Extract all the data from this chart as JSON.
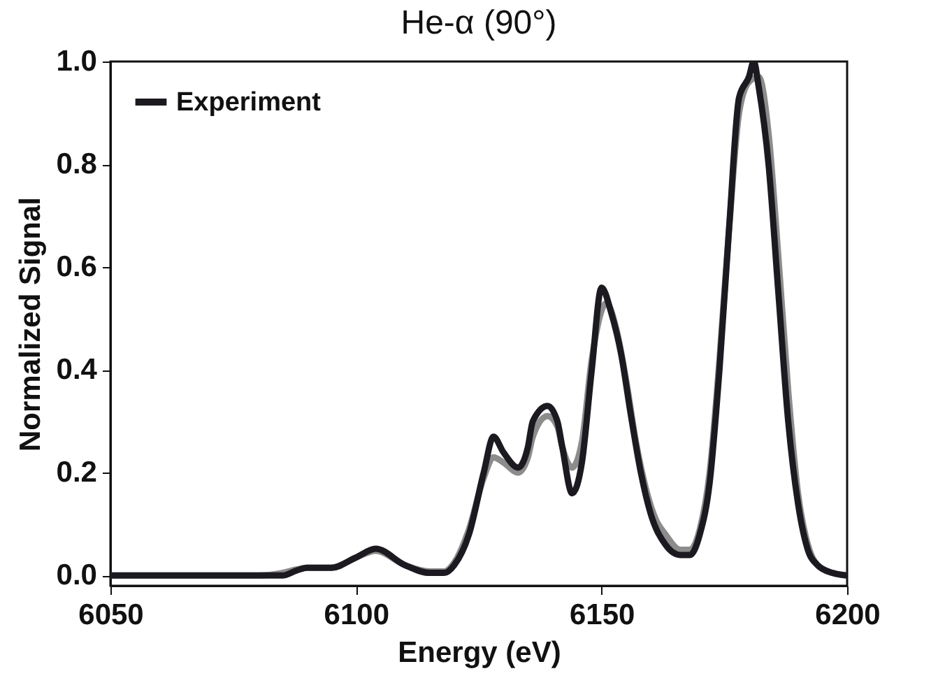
{
  "chart_data": {
    "type": "line",
    "title": "He-α (90°)",
    "xlabel": "Energy (eV)",
    "ylabel": "Normalized Signal",
    "xlim": [
      6050,
      6200
    ],
    "ylim": [
      -0.02,
      1.0
    ],
    "xticks": [
      6050,
      6100,
      6150,
      6200
    ],
    "yticks": [
      {
        "value": 0,
        "label": "0.0"
      },
      0.2,
      0.4,
      0.6,
      0.8,
      {
        "value": 1,
        "label": "1.0"
      }
    ],
    "legend": "top left",
    "grid": false,
    "marker": "none",
    "line_style": "solid",
    "series": [
      {
        "name": null,
        "color": "#8c8c8c",
        "x": [
          6050,
          6080,
          6085,
          6088,
          6090,
          6095,
          6100,
          6104,
          6110,
          6115,
          6118,
          6120,
          6123,
          6126,
          6128,
          6130,
          6133,
          6135,
          6136,
          6139,
          6141,
          6142,
          6144,
          6146,
          6148,
          6151,
          6153,
          6155,
          6157,
          6159,
          6161,
          6163,
          6166,
          6168,
          6170,
          6172,
          6174,
          6176,
          6178,
          6180,
          6182,
          6184,
          6186,
          6188,
          6190,
          6192,
          6194,
          6197,
          6200
        ],
        "values": [
          0,
          0,
          0.005,
          0.012,
          0.015,
          0.015,
          0.035,
          0.048,
          0.02,
          0.008,
          0.008,
          0.025,
          0.09,
          0.19,
          0.23,
          0.22,
          0.2,
          0.23,
          0.27,
          0.31,
          0.29,
          0.25,
          0.21,
          0.26,
          0.42,
          0.53,
          0.48,
          0.38,
          0.26,
          0.17,
          0.11,
          0.08,
          0.05,
          0.05,
          0.09,
          0.2,
          0.42,
          0.68,
          0.9,
          0.96,
          0.97,
          0.86,
          0.62,
          0.36,
          0.16,
          0.06,
          0.02,
          0.005,
          0
        ]
      },
      {
        "name": "Experiment",
        "color": "#1c1a20",
        "x": [
          6050,
          6080,
          6085,
          6088,
          6090,
          6095,
          6100,
          6104,
          6110,
          6115,
          6118,
          6120,
          6123,
          6126,
          6128,
          6130,
          6133,
          6135,
          6136,
          6139,
          6141,
          6142,
          6144,
          6146,
          6148,
          6150,
          6152,
          6154,
          6156,
          6158,
          6160,
          6163,
          6166,
          6168,
          6170,
          6172,
          6174,
          6176,
          6178,
          6180,
          6181,
          6182,
          6184,
          6186,
          6188,
          6190,
          6192,
          6194,
          6197,
          6200
        ],
        "values": [
          0,
          0,
          0,
          0.01,
          0.015,
          0.015,
          0.035,
          0.052,
          0.02,
          0.005,
          0.005,
          0.02,
          0.08,
          0.2,
          0.27,
          0.24,
          0.21,
          0.25,
          0.3,
          0.33,
          0.3,
          0.25,
          0.16,
          0.22,
          0.4,
          0.56,
          0.51,
          0.43,
          0.31,
          0.2,
          0.12,
          0.06,
          0.04,
          0.04,
          0.08,
          0.18,
          0.4,
          0.68,
          0.93,
          0.97,
          1.0,
          0.95,
          0.8,
          0.55,
          0.3,
          0.14,
          0.05,
          0.02,
          0.005,
          0
        ]
      }
    ]
  }
}
